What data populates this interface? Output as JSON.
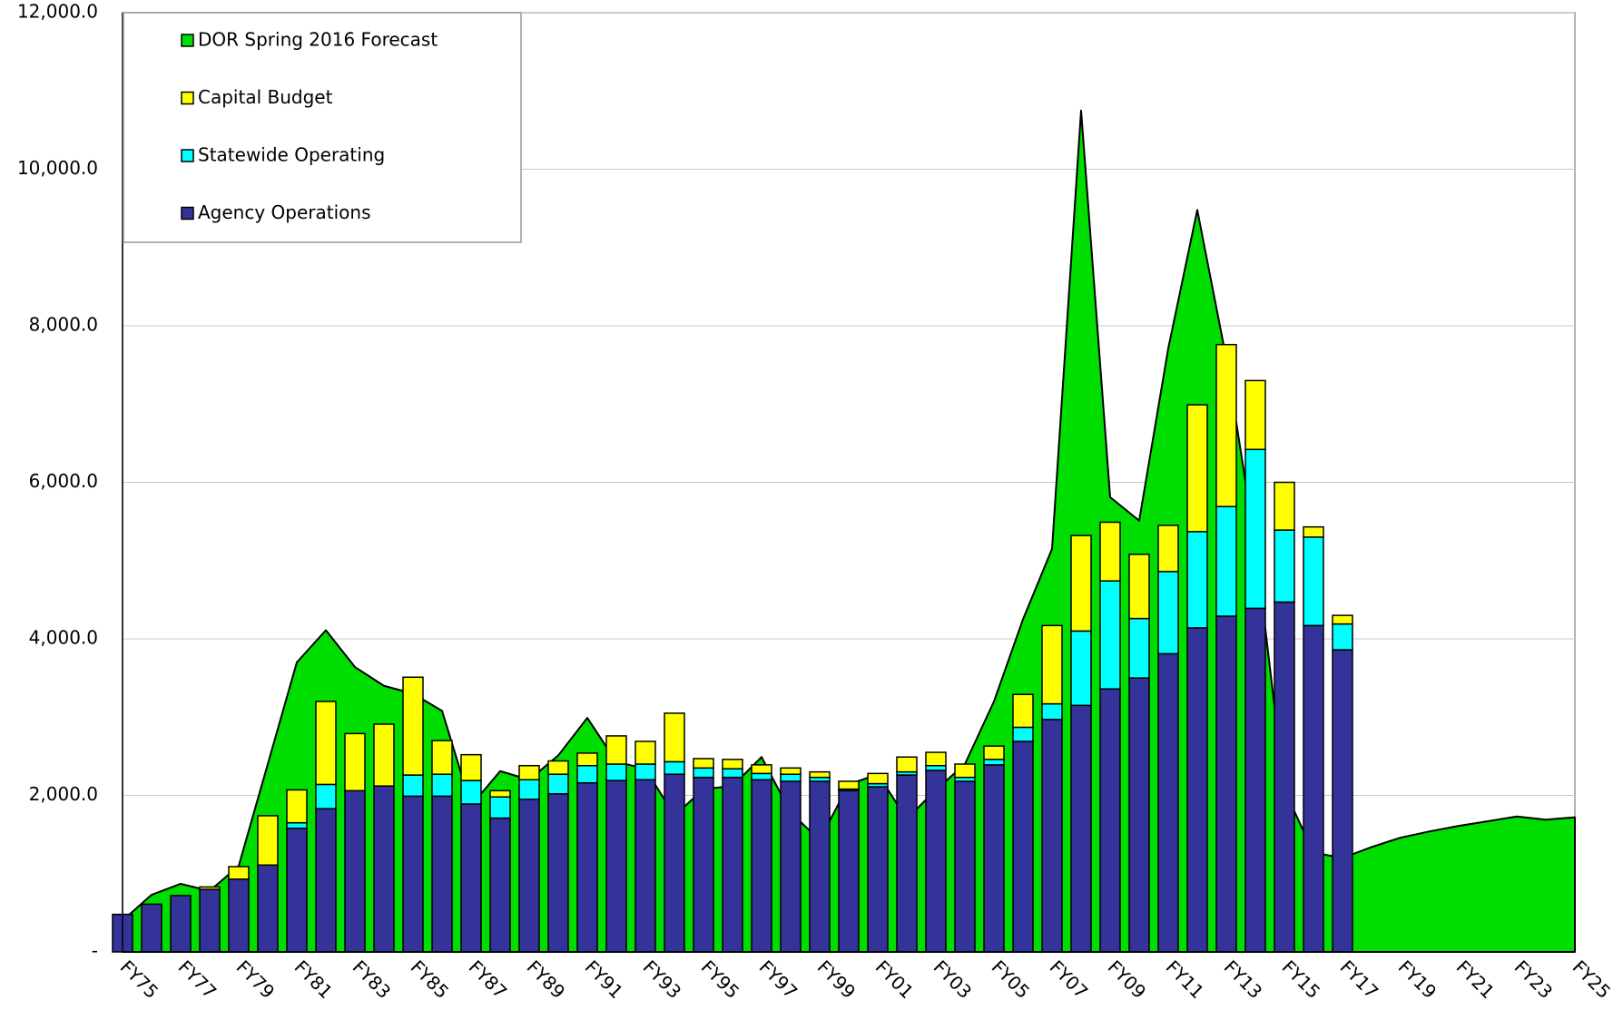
{
  "chart_data": {
    "type": "combo",
    "categories": [
      "FY75",
      null,
      "FY77",
      null,
      "FY79",
      null,
      "FY81",
      null,
      "FY83",
      null,
      "FY85",
      null,
      "FY87",
      null,
      "FY89",
      null,
      "FY91",
      null,
      "FY93",
      null,
      "FY95",
      null,
      "FY97",
      null,
      "FY99",
      null,
      "FY01",
      null,
      "FY03",
      null,
      "FY05",
      null,
      "FY07",
      null,
      "FY09",
      null,
      "FY11",
      null,
      "FY13",
      null,
      "FY15",
      null,
      "FY17",
      null,
      "FY19",
      null,
      "FY21",
      null,
      "FY23",
      null,
      "FY25"
    ],
    "series": [
      {
        "name": "DOR Spring 2016 Forecast",
        "type": "area",
        "color": "#00dd00",
        "values": [
          400,
          730,
          870,
          780,
          1100,
          2400,
          3700,
          4110,
          3640,
          3400,
          3300,
          3080,
          1870,
          2310,
          2200,
          2510,
          2990,
          2430,
          2340,
          1740,
          2080,
          2120,
          2490,
          1780,
          1430,
          2140,
          2270,
          1700,
          2070,
          2400,
          3200,
          4250,
          5150,
          10750,
          5810,
          5510,
          7710,
          9480,
          7580,
          5200,
          2070,
          1270,
          1200,
          1340,
          1460,
          1540,
          1610,
          1670,
          1730,
          1690,
          1720
        ]
      },
      {
        "name": "Agency Operations",
        "type": "bar",
        "color": "#333399",
        "values": [
          480,
          610,
          720,
          800,
          930,
          1110,
          1580,
          1830,
          2060,
          2120,
          1990,
          1990,
          1890,
          1710,
          1950,
          2020,
          2160,
          2190,
          2200,
          2270,
          2230,
          2230,
          2200,
          2180,
          2180,
          2060,
          2110,
          2260,
          2320,
          2180,
          2390,
          2690,
          2970,
          3150,
          3360,
          3500,
          3810,
          4140,
          4290,
          4390,
          4470,
          4170,
          3860,
          null,
          null,
          null,
          null,
          null,
          null,
          null,
          null
        ]
      },
      {
        "name": "Statewide Operating",
        "type": "bar",
        "color": "#00ffff",
        "values": [
          0,
          0,
          0,
          0,
          0,
          0,
          70,
          310,
          0,
          0,
          270,
          280,
          300,
          270,
          250,
          250,
          220,
          210,
          200,
          160,
          120,
          110,
          80,
          90,
          50,
          20,
          40,
          40,
          60,
          50,
          70,
          180,
          200,
          950,
          1380,
          760,
          1050,
          1230,
          1400,
          2030,
          920,
          1130,
          330,
          null,
          null,
          null,
          null,
          null,
          null,
          null,
          null
        ]
      },
      {
        "name": "Capital Budget",
        "type": "bar",
        "color": "#ffff00",
        "values": [
          0,
          0,
          0,
          30,
          160,
          630,
          420,
          1060,
          730,
          790,
          1250,
          430,
          330,
          80,
          180,
          170,
          160,
          360,
          290,
          620,
          120,
          120,
          110,
          80,
          70,
          100,
          130,
          190,
          170,
          170,
          170,
          420,
          1000,
          1220,
          750,
          820,
          590,
          1620,
          2070,
          880,
          610,
          130,
          110,
          null,
          null,
          null,
          null,
          null,
          null,
          null,
          null
        ]
      }
    ],
    "legend_order": [
      0,
      3,
      2,
      1
    ],
    "ylim": [
      0,
      12000
    ],
    "yticks": [
      {
        "value": 0,
        "label": "-"
      },
      {
        "value": 2000,
        "label": "2,000.0"
      },
      {
        "value": 4000,
        "label": "4,000.0"
      },
      {
        "value": 6000,
        "label": "6,000.0"
      },
      {
        "value": 8000,
        "label": "8,000.0"
      },
      {
        "value": 10000,
        "label": "10,000.0"
      },
      {
        "value": 12000,
        "label": "12,000.0"
      }
    ],
    "grid": true,
    "legend": "upper left"
  }
}
